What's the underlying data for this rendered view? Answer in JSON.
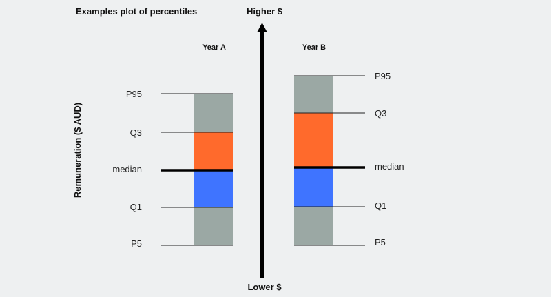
{
  "title": "Examples plot of percentiles",
  "y_axis_label": "Remuneration ($ AUD)",
  "arrow": {
    "top_label": "Higher $",
    "bottom_label": "Lower $"
  },
  "colors": {
    "outer_band": "#9ba8a4",
    "q3_band": "#ff6a2c",
    "q1_band": "#3f74ff",
    "arrow": "#000000"
  },
  "year_a": {
    "label": "Year A",
    "p95": "P95",
    "q3": "Q3",
    "median": "median",
    "q1": "Q1",
    "p5": "P5"
  },
  "year_b": {
    "label": "Year B",
    "p95": "P95",
    "q3": "Q3",
    "median": "median",
    "q1": "Q1",
    "p5": "P5"
  }
}
